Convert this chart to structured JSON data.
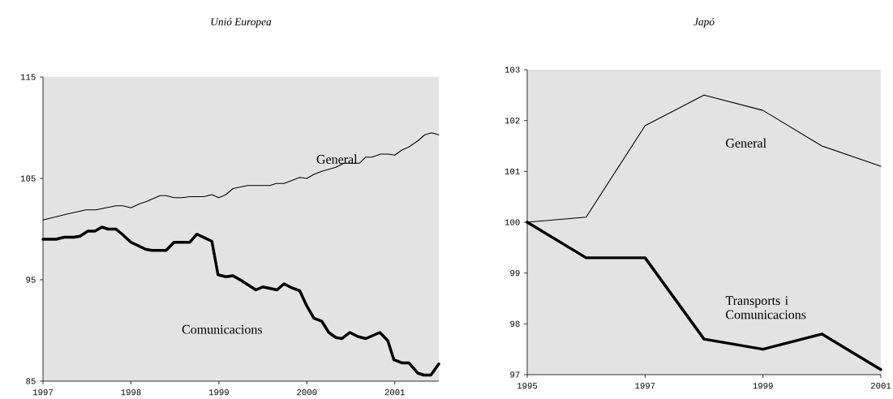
{
  "chart_data": [
    {
      "type": "line",
      "title": "Unió Europea",
      "xlim": [
        1997,
        2001.5
      ],
      "xticks": [
        1997,
        1998,
        1999,
        2000,
        2001
      ],
      "ylim": [
        85,
        115
      ],
      "yticks": [
        85,
        95,
        105,
        115
      ],
      "series": [
        {
          "name": "General",
          "color": "#000000",
          "x": [
            1997.0,
            1997.28,
            1997.49,
            1997.6,
            1997.83,
            1997.91,
            1998.0,
            1998.1,
            1998.17,
            1998.33,
            1998.4,
            1998.49,
            1998.58,
            1998.67,
            1998.83,
            1998.92,
            1999.0,
            1999.08,
            1999.16,
            1999.33,
            1999.58,
            1999.65,
            1999.74,
            1999.83,
            1999.92,
            2000.0,
            2000.08,
            2000.17,
            2000.33,
            2000.42,
            2000.6,
            2000.67,
            2000.74,
            2000.84,
            2000.92,
            2001.0,
            2001.08,
            2001.16,
            2001.26,
            2001.34,
            2001.42,
            2001.5
          ],
          "values": [
            100.9,
            101.5,
            101.9,
            101.9,
            102.3,
            102.3,
            102.1,
            102.5,
            102.7,
            103.3,
            103.3,
            103.1,
            103.1,
            103.2,
            103.2,
            103.4,
            103.1,
            103.4,
            104.0,
            104.3,
            104.3,
            104.5,
            104.5,
            104.8,
            105.1,
            105.0,
            105.4,
            105.7,
            106.1,
            106.5,
            106.5,
            107.1,
            107.1,
            107.4,
            107.4,
            107.3,
            107.8,
            108.1,
            108.7,
            109.3,
            109.5,
            109.3
          ]
        },
        {
          "name": "Comunicacions",
          "color": "#000000",
          "x": [
            1997.0,
            1997.15,
            1997.24,
            1997.35,
            1997.42,
            1997.51,
            1997.59,
            1997.67,
            1997.74,
            1997.83,
            1997.9,
            1998.0,
            1998.17,
            1998.24,
            1998.4,
            1998.49,
            1998.67,
            1998.75,
            1998.92,
            1998.99,
            1999.08,
            1999.16,
            1999.26,
            1999.42,
            1999.5,
            1999.66,
            1999.74,
            1999.83,
            1999.92,
            2000.0,
            2000.08,
            2000.17,
            2000.25,
            2000.33,
            2000.4,
            2000.49,
            2000.58,
            2000.67,
            2000.83,
            2000.92,
            2000.99,
            2001.08,
            2001.16,
            2001.26,
            2001.33,
            2001.41,
            2001.5
          ],
          "values": [
            99.0,
            99.0,
            99.2,
            99.2,
            99.3,
            99.8,
            99.8,
            100.2,
            100.0,
            100.0,
            99.5,
            98.7,
            98.0,
            97.9,
            97.9,
            98.7,
            98.7,
            99.5,
            98.8,
            95.5,
            95.3,
            95.4,
            94.9,
            94.0,
            94.3,
            94.0,
            94.6,
            94.2,
            93.9,
            92.4,
            91.2,
            90.9,
            89.8,
            89.3,
            89.2,
            89.8,
            89.4,
            89.2,
            89.8,
            89.0,
            87.1,
            86.8,
            86.8,
            85.8,
            85.6,
            85.6,
            86.7
          ]
        }
      ]
    },
    {
      "type": "line",
      "title": "Japó",
      "xlim": [
        1995,
        2001
      ],
      "xticks": [
        1995,
        1997,
        1999,
        2001
      ],
      "ylim": [
        97,
        103
      ],
      "yticks": [
        97,
        98,
        99,
        100,
        101,
        102,
        103
      ],
      "x": [
        1995,
        1996,
        1997,
        1998,
        1999,
        2000,
        2001
      ],
      "series": [
        {
          "name": "General",
          "color": "#000000",
          "values": [
            100.0,
            100.1,
            101.9,
            102.5,
            102.2,
            101.5,
            101.1
          ]
        },
        {
          "name": "Transports i Comunicacions",
          "color": "#000000",
          "values": [
            100.0,
            99.3,
            99.3,
            97.7,
            97.5,
            97.8,
            97.1
          ]
        }
      ]
    }
  ]
}
